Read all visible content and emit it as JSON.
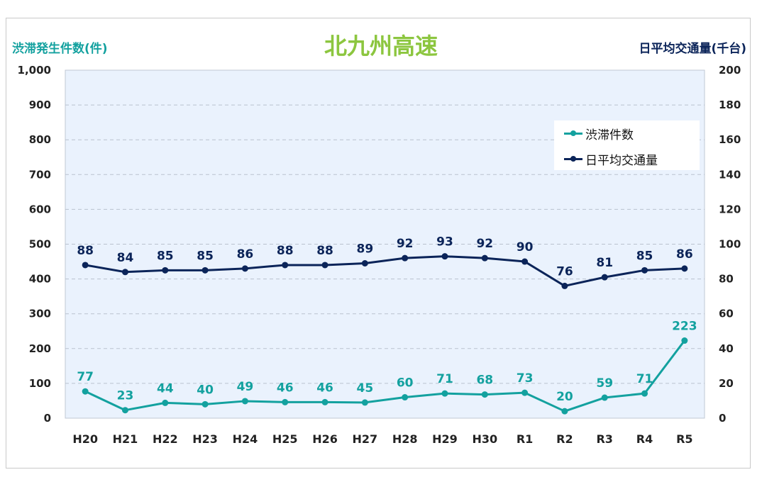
{
  "chart_data": {
    "type": "line",
    "title": "北九州高速",
    "ylabel_left": "渋滞発生件数(件)",
    "ylabel_right": "日平均交通量(千台)",
    "categories": [
      "H20",
      "H21",
      "H22",
      "H23",
      "H24",
      "H25",
      "H26",
      "H27",
      "H28",
      "H29",
      "H30",
      "R1",
      "R2",
      "R3",
      "R4",
      "R5"
    ],
    "y_left_ticks": [
      "0",
      "100",
      "200",
      "300",
      "400",
      "500",
      "600",
      "700",
      "800",
      "900",
      "1,000"
    ],
    "y_right_ticks": [
      "0",
      "20",
      "40",
      "60",
      "80",
      "100",
      "120",
      "140",
      "160",
      "180",
      "200"
    ],
    "ylim_left": [
      0,
      1000
    ],
    "ylim_right": [
      0,
      200
    ],
    "grid": true,
    "legend_position": "top-right",
    "series": [
      {
        "name": "渋滞件数",
        "axis": "left",
        "color": "#13a19f",
        "values": [
          77,
          23,
          44,
          40,
          49,
          46,
          46,
          45,
          60,
          71,
          68,
          73,
          20,
          59,
          71,
          223
        ]
      },
      {
        "name": "日平均交通量",
        "axis": "right",
        "color": "#0b2459",
        "values": [
          88,
          84,
          85,
          85,
          86,
          88,
          88,
          89,
          92,
          93,
          92,
          90,
          76,
          81,
          85,
          86
        ]
      }
    ]
  },
  "colors": {
    "plot_bg": "#eaf2fd",
    "accent_green": "#8cc63f",
    "teal": "#13a19f",
    "navy": "#0b2459"
  }
}
